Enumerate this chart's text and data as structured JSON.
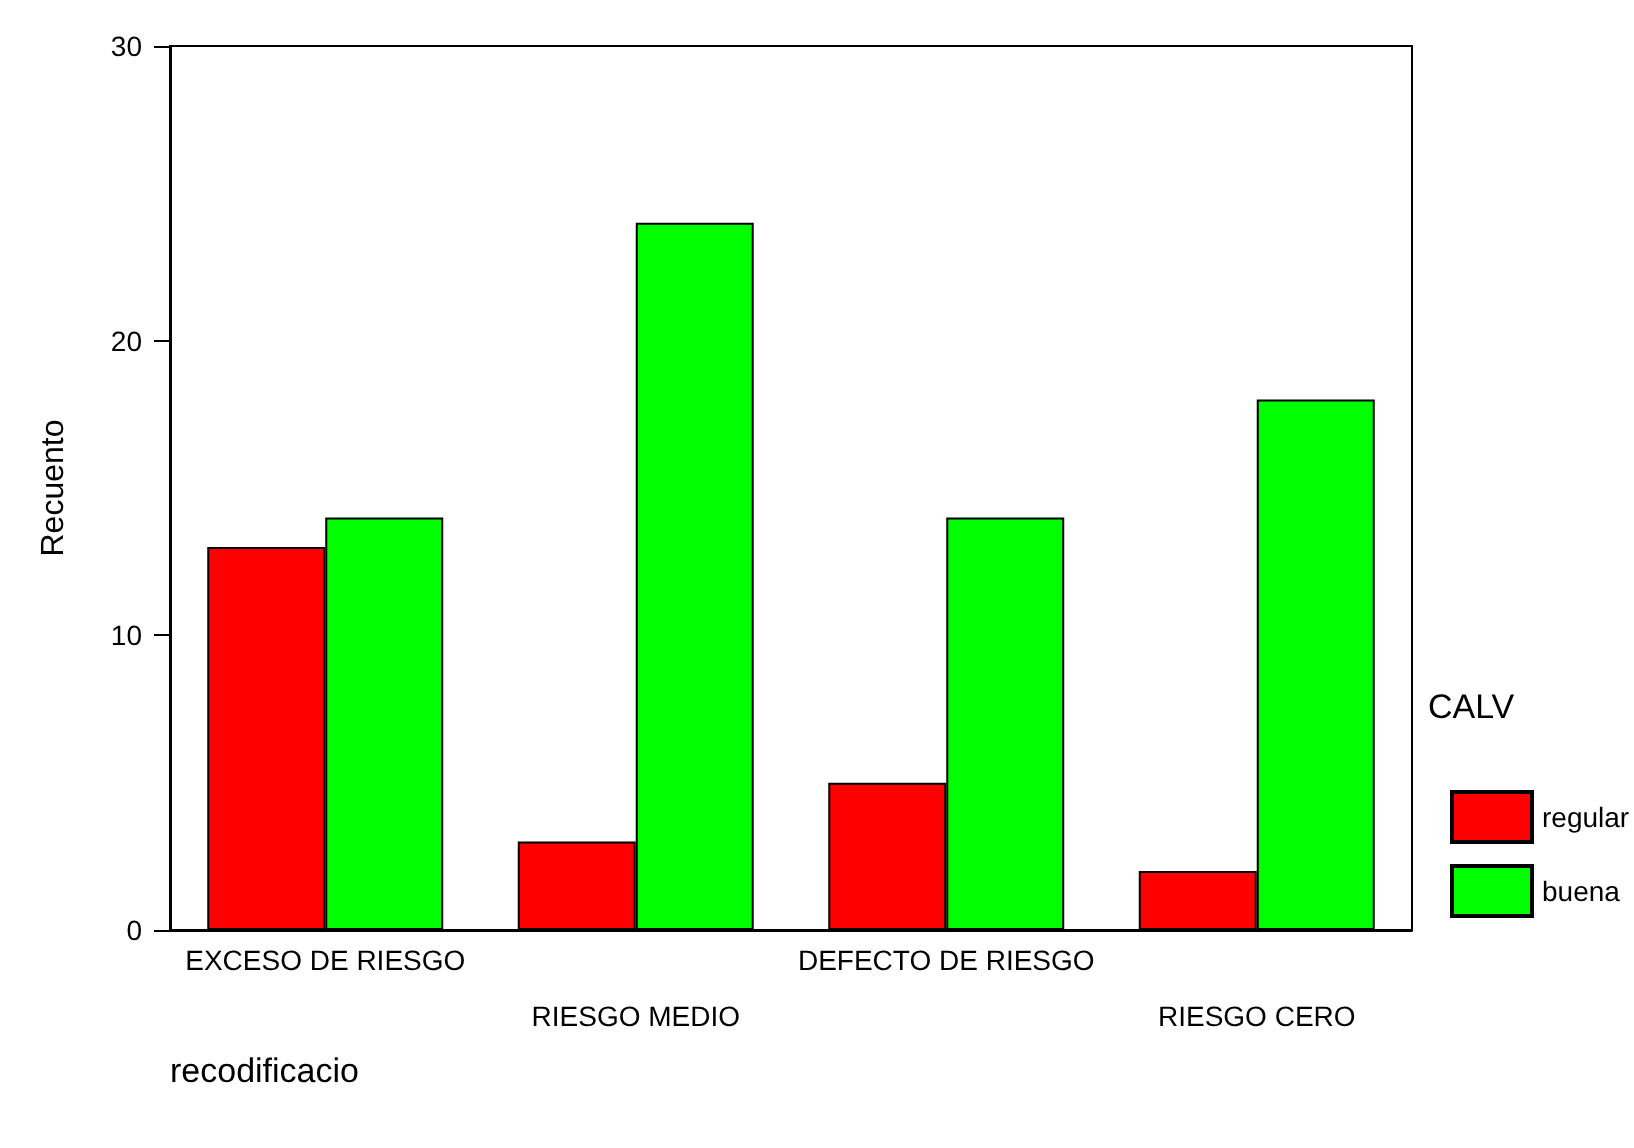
{
  "chart_data": {
    "type": "bar",
    "xlabel": "recodificacio",
    "ylabel": "Recuento",
    "legend_title": "CALV",
    "categories": [
      "EXCESO DE RIESGO",
      "RIESGO MEDIO",
      "DEFECTO DE RIESGO",
      "RIESGO CERO"
    ],
    "series": [
      {
        "name": "regular",
        "color": "#ff0000",
        "values": [
          13,
          3,
          5,
          2
        ]
      },
      {
        "name": "buena",
        "color": "#00ff00",
        "values": [
          14,
          24,
          14,
          18
        ]
      }
    ],
    "ylim": [
      0,
      30
    ],
    "yticks": [
      0,
      10,
      20,
      30
    ],
    "grid": false,
    "legend": "right"
  }
}
